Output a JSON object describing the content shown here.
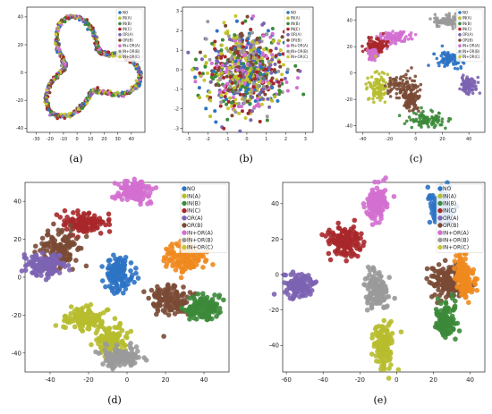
{
  "figure": {
    "captions": [
      "(a)",
      "(b)",
      "(c)",
      "(d)",
      "(e)"
    ]
  },
  "chart_data": [
    {
      "id": "a",
      "type": "scatter",
      "shape": "ring",
      "xlim": [
        -37,
        50
      ],
      "ylim": [
        -43,
        47
      ],
      "xticks": [
        -30,
        -20,
        -10,
        0,
        10,
        20,
        30,
        40
      ],
      "yticks": [
        -40,
        -20,
        0,
        20,
        40
      ],
      "legend": [
        "NO",
        "IN(A)",
        "IN(B)",
        "IN(C)",
        "OR(A)",
        "OR(B)",
        "IN+OR(A)",
        "IN+OR(B)",
        "IN+OR(C)"
      ],
      "legend_loc": "top-right",
      "colors": [
        "#2d73c4",
        "#b7bd2d",
        "#3c8a3a",
        "#a8272a",
        "#7c63b2",
        "#7a4a35",
        "#d36fd0",
        "#9a9a9a",
        "#c9c735"
      ]
    },
    {
      "id": "b",
      "type": "scatter",
      "shape": "blob",
      "xlim": [
        -3.3,
        3.4
      ],
      "ylim": [
        -3.2,
        3.2
      ],
      "xticks": [
        -3,
        -2,
        -1,
        0,
        1,
        2,
        3
      ],
      "yticks": [
        -3,
        -2,
        -1,
        0,
        1,
        2,
        3
      ],
      "legend": [
        "NO",
        "IN(A)",
        "IN(B)",
        "IN(C)",
        "OR(A)",
        "OR(B)",
        "IN+OR(A)",
        "IN+OR(B)",
        "IN+OR(C)"
      ],
      "legend_loc": "top-right",
      "colors": [
        "#2d73c4",
        "#b7bd2d",
        "#3c8a3a",
        "#a8272a",
        "#7c63b2",
        "#7a4a35",
        "#d36fd0",
        "#9a9a9a",
        "#c9c735"
      ]
    },
    {
      "id": "c",
      "type": "scatter",
      "shape": "clusters",
      "xlim": [
        -45,
        52
      ],
      "ylim": [
        -45,
        50
      ],
      "xticks": [
        -40,
        -20,
        0,
        20,
        40
      ],
      "yticks": [
        -40,
        -20,
        0,
        20,
        40
      ],
      "legend": [
        "NO",
        "IN(A)",
        "IN(B)",
        "IN(C)",
        "OR(A)",
        "OR(B)",
        "IN+OR(A)",
        "IN+OR(B)",
        "IN+OR(C)"
      ],
      "legend_loc": "top-right",
      "clusters": [
        {
          "x": 25,
          "y": 40,
          "sx": 5,
          "sy": 2.5,
          "color": "#9a9a9a"
        },
        {
          "x": -15,
          "y": 27,
          "sx": 6,
          "sy": 2.5,
          "color": "#d36fd0"
        },
        {
          "x": -30,
          "y": 20,
          "sx": 4,
          "sy": 3,
          "color": "#a8272a"
        },
        {
          "x": -33,
          "y": 14,
          "sx": 2,
          "sy": 2,
          "color": "#d36fd0"
        },
        {
          "x": 25,
          "y": 11,
          "sx": 5,
          "sy": 3,
          "color": "#2d73c4"
        },
        {
          "x": -28,
          "y": -10,
          "sx": 4,
          "sy": 6,
          "color": "#b7bd2d"
        },
        {
          "x": -10,
          "y": -10,
          "sx": 6,
          "sy": 5,
          "color": "#7a4a35"
        },
        {
          "x": -4,
          "y": -20,
          "sx": 3,
          "sy": 4,
          "color": "#7a4a35"
        },
        {
          "x": 10,
          "y": -35,
          "sx": 8,
          "sy": 3,
          "color": "#3c8a3a"
        },
        {
          "x": 40,
          "y": -9,
          "sx": 3,
          "sy": 3,
          "color": "#7c63b2"
        }
      ]
    },
    {
      "id": "d",
      "type": "scatter",
      "shape": "clusters",
      "xlim": [
        -53,
        53
      ],
      "ylim": [
        -50,
        50
      ],
      "xticks": [
        -40,
        -20,
        0,
        20,
        40
      ],
      "yticks": [
        -40,
        -20,
        0,
        20,
        40
      ],
      "legend": [
        "NO",
        "IN(A)",
        "IN(B)",
        "IN(C)",
        "OR(A)",
        "OR(B)",
        "IN+OR(A)",
        "IN+OR(B)",
        "IN+OR(C)"
      ],
      "legend_loc": "top-right",
      "clusters": [
        {
          "x": 3,
          "y": 45,
          "sx": 4,
          "sy": 3,
          "color": "#d36fd0"
        },
        {
          "x": -22,
          "y": 28,
          "sx": 5,
          "sy": 2.5,
          "color": "#a8272a"
        },
        {
          "x": -35,
          "y": 15,
          "sx": 5,
          "sy": 5,
          "color": "#7a4a35"
        },
        {
          "x": -42,
          "y": 6,
          "sx": 5,
          "sy": 3,
          "color": "#7c63b2"
        },
        {
          "x": -4,
          "y": 2,
          "sx": 3.5,
          "sy": 4.5,
          "color": "#2d73c4"
        },
        {
          "x": 30,
          "y": 10,
          "sx": 5,
          "sy": 4,
          "color": "#f08a1e"
        },
        {
          "x": 22,
          "y": -12,
          "sx": 5,
          "sy": 4,
          "color": "#7a4a35"
        },
        {
          "x": 40,
          "y": -16,
          "sx": 4,
          "sy": 3,
          "color": "#3c8a3a"
        },
        {
          "x": -22,
          "y": -22,
          "sx": 5,
          "sy": 3,
          "color": "#b7bd2d"
        },
        {
          "x": -8,
          "y": -34,
          "sx": 4,
          "sy": 4,
          "color": "#b7bd2d"
        },
        {
          "x": -3,
          "y": -42,
          "sx": 5,
          "sy": 2.5,
          "color": "#9a9a9a"
        }
      ]
    },
    {
      "id": "e",
      "type": "scatter",
      "shape": "clusters",
      "xlim": [
        -62,
        48
      ],
      "ylim": [
        -55,
        52
      ],
      "xticks": [
        -60,
        -40,
        -20,
        0,
        20,
        40
      ],
      "yticks": [
        -40,
        -20,
        0,
        20,
        40
      ],
      "legend": [
        "NO",
        "IN(A)",
        "IN(B)",
        "IN(C)",
        "OR(A)",
        "OR(B)",
        "IN+OR(A)",
        "IN+OR(B)",
        "IN+OR(C)"
      ],
      "legend_loc": "top-right",
      "clusters": [
        {
          "x": 24,
          "y": 37,
          "sx": 3.5,
          "sy": 5,
          "color": "#2d73c4"
        },
        {
          "x": -11,
          "y": 40,
          "sx": 2.5,
          "sy": 5,
          "color": "#d36fd0"
        },
        {
          "x": -28,
          "y": 19,
          "sx": 5,
          "sy": 4,
          "color": "#a8272a"
        },
        {
          "x": -53,
          "y": -6,
          "sx": 4,
          "sy": 3,
          "color": "#7c63b2"
        },
        {
          "x": -11,
          "y": -10,
          "sx": 3,
          "sy": 6,
          "color": "#9a9a9a"
        },
        {
          "x": -7,
          "y": -40,
          "sx": 2.5,
          "sy": 6,
          "color": "#b7bd2d"
        },
        {
          "x": 28,
          "y": -4,
          "sx": 5,
          "sy": 5,
          "color": "#7a4a35"
        },
        {
          "x": 37,
          "y": -2,
          "sx": 2.5,
          "sy": 6,
          "color": "#f08a1e"
        },
        {
          "x": 27,
          "y": -25,
          "sx": 2.5,
          "sy": 5,
          "color": "#3c8a3a"
        }
      ]
    }
  ]
}
